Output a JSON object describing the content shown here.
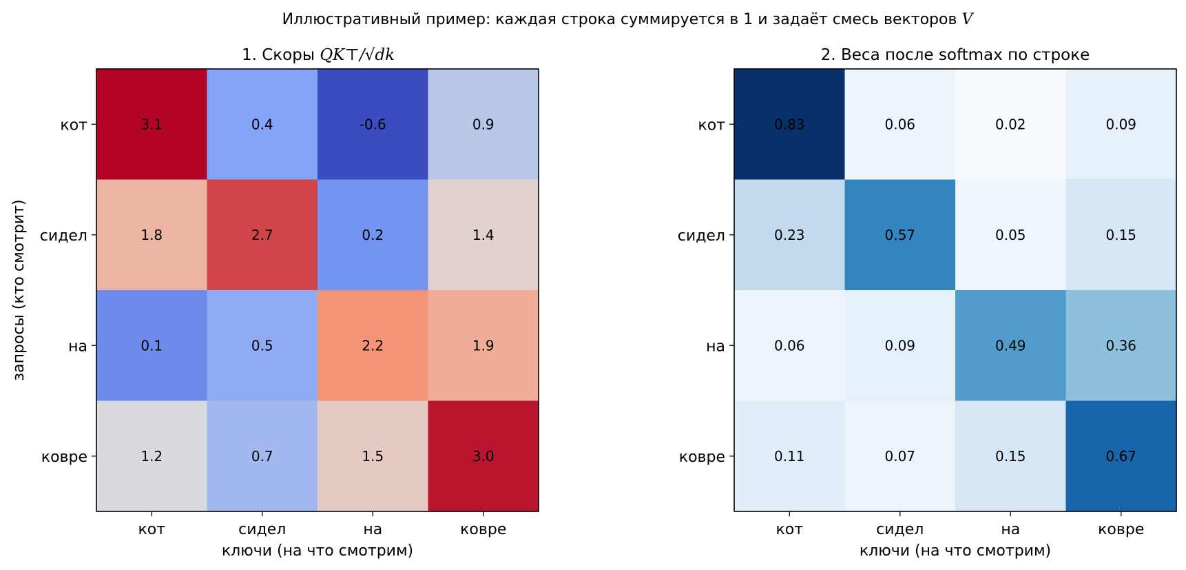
{
  "suptitle": "Иллюстративный пример: каждая строка суммируется в 1 и задаёт смесь векторов",
  "suptitle_var": "V",
  "chart_data": [
    {
      "type": "heatmap",
      "title": "1. Скоры",
      "title_math": "QK⊤/√dk",
      "xlabel": "ключи (на что смотрим)",
      "ylabel": "запросы (кто смотрит)",
      "x_categories": [
        "кот",
        "сидел",
        "на",
        "ковре"
      ],
      "y_categories": [
        "кот",
        "сидел",
        "на",
        "ковре"
      ],
      "values": [
        [
          3.1,
          0.4,
          -0.6,
          0.9
        ],
        [
          1.8,
          2.7,
          0.2,
          1.4
        ],
        [
          0.1,
          0.5,
          2.2,
          1.9
        ],
        [
          1.2,
          0.7,
          1.5,
          3.0
        ]
      ],
      "labels": [
        [
          "3.1",
          "0.4",
          "-0.6",
          "0.9"
        ],
        [
          "1.8",
          "2.7",
          "0.2",
          "1.4"
        ],
        [
          "0.1",
          "0.5",
          "2.2",
          "1.9"
        ],
        [
          "1.2",
          "0.7",
          "1.5",
          "3.0"
        ]
      ],
      "colormap": "coolwarm",
      "value_range": [
        -0.6,
        3.1
      ]
    },
    {
      "type": "heatmap",
      "title": "2. Веса после softmax по строке",
      "xlabel": "ключи (на что смотрим)",
      "ylabel": "",
      "x_categories": [
        "кот",
        "сидел",
        "на",
        "ковре"
      ],
      "y_categories": [
        "кот",
        "сидел",
        "на",
        "ковре"
      ],
      "values": [
        [
          0.83,
          0.06,
          0.02,
          0.09
        ],
        [
          0.23,
          0.57,
          0.05,
          0.15
        ],
        [
          0.06,
          0.09,
          0.49,
          0.36
        ],
        [
          0.11,
          0.07,
          0.15,
          0.67
        ]
      ],
      "labels": [
        [
          "0.83",
          "0.06",
          "0.02",
          "0.09"
        ],
        [
          "0.23",
          "0.57",
          "0.05",
          "0.15"
        ],
        [
          "0.06",
          "0.09",
          "0.49",
          "0.36"
        ],
        [
          "0.11",
          "0.07",
          "0.15",
          "0.67"
        ]
      ],
      "colormap": "Blues",
      "value_range": [
        0.02,
        0.83
      ]
    }
  ]
}
